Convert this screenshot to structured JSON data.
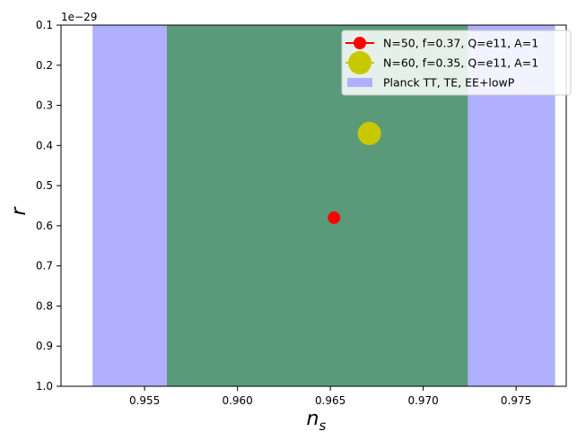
{
  "chart_data": {
    "type": "scatter",
    "xlabel": "n",
    "xlabel_subscript": "s",
    "ylabel": "r",
    "offset_text": "1e−29",
    "xlim": [
      0.9505,
      0.9777
    ],
    "ylim": [
      0.1,
      1.0
    ],
    "y_inverted": true,
    "x_ticks": [
      0.955,
      0.96,
      0.965,
      0.97,
      0.975
    ],
    "x_tick_labels": [
      "0.955",
      "0.960",
      "0.965",
      "0.970",
      "0.975"
    ],
    "y_ticks": [
      0.1,
      0.2,
      0.3,
      0.4,
      0.5,
      0.6,
      0.7,
      0.8,
      0.9,
      1.0
    ],
    "y_tick_labels": [
      "0.1",
      "0.2",
      "0.3",
      "0.4",
      "0.5",
      "0.6",
      "0.7",
      "0.8",
      "0.9",
      "1.0"
    ],
    "grid": false,
    "legend_position": "top-right",
    "bands": [
      {
        "name": "Planck TT, TE, EE+lowP",
        "x_range": [
          0.9522,
          0.9771
        ],
        "color": "#b0b0ff"
      },
      {
        "x_range": [
          0.9562,
          0.9724
        ],
        "color": "#5a9a7a"
      }
    ],
    "series": [
      {
        "name": "N=50, f=0.37, Q=e11, A=1",
        "x": [
          0.9652
        ],
        "y": [
          0.58
        ],
        "color": "#ff0000",
        "marker": "small-circle"
      },
      {
        "name": "N=60, f=0.35, Q=e11, A=1",
        "x": [
          0.9671
        ],
        "y": [
          0.37
        ],
        "color": "#c8c800",
        "marker": "large-circle"
      }
    ]
  }
}
